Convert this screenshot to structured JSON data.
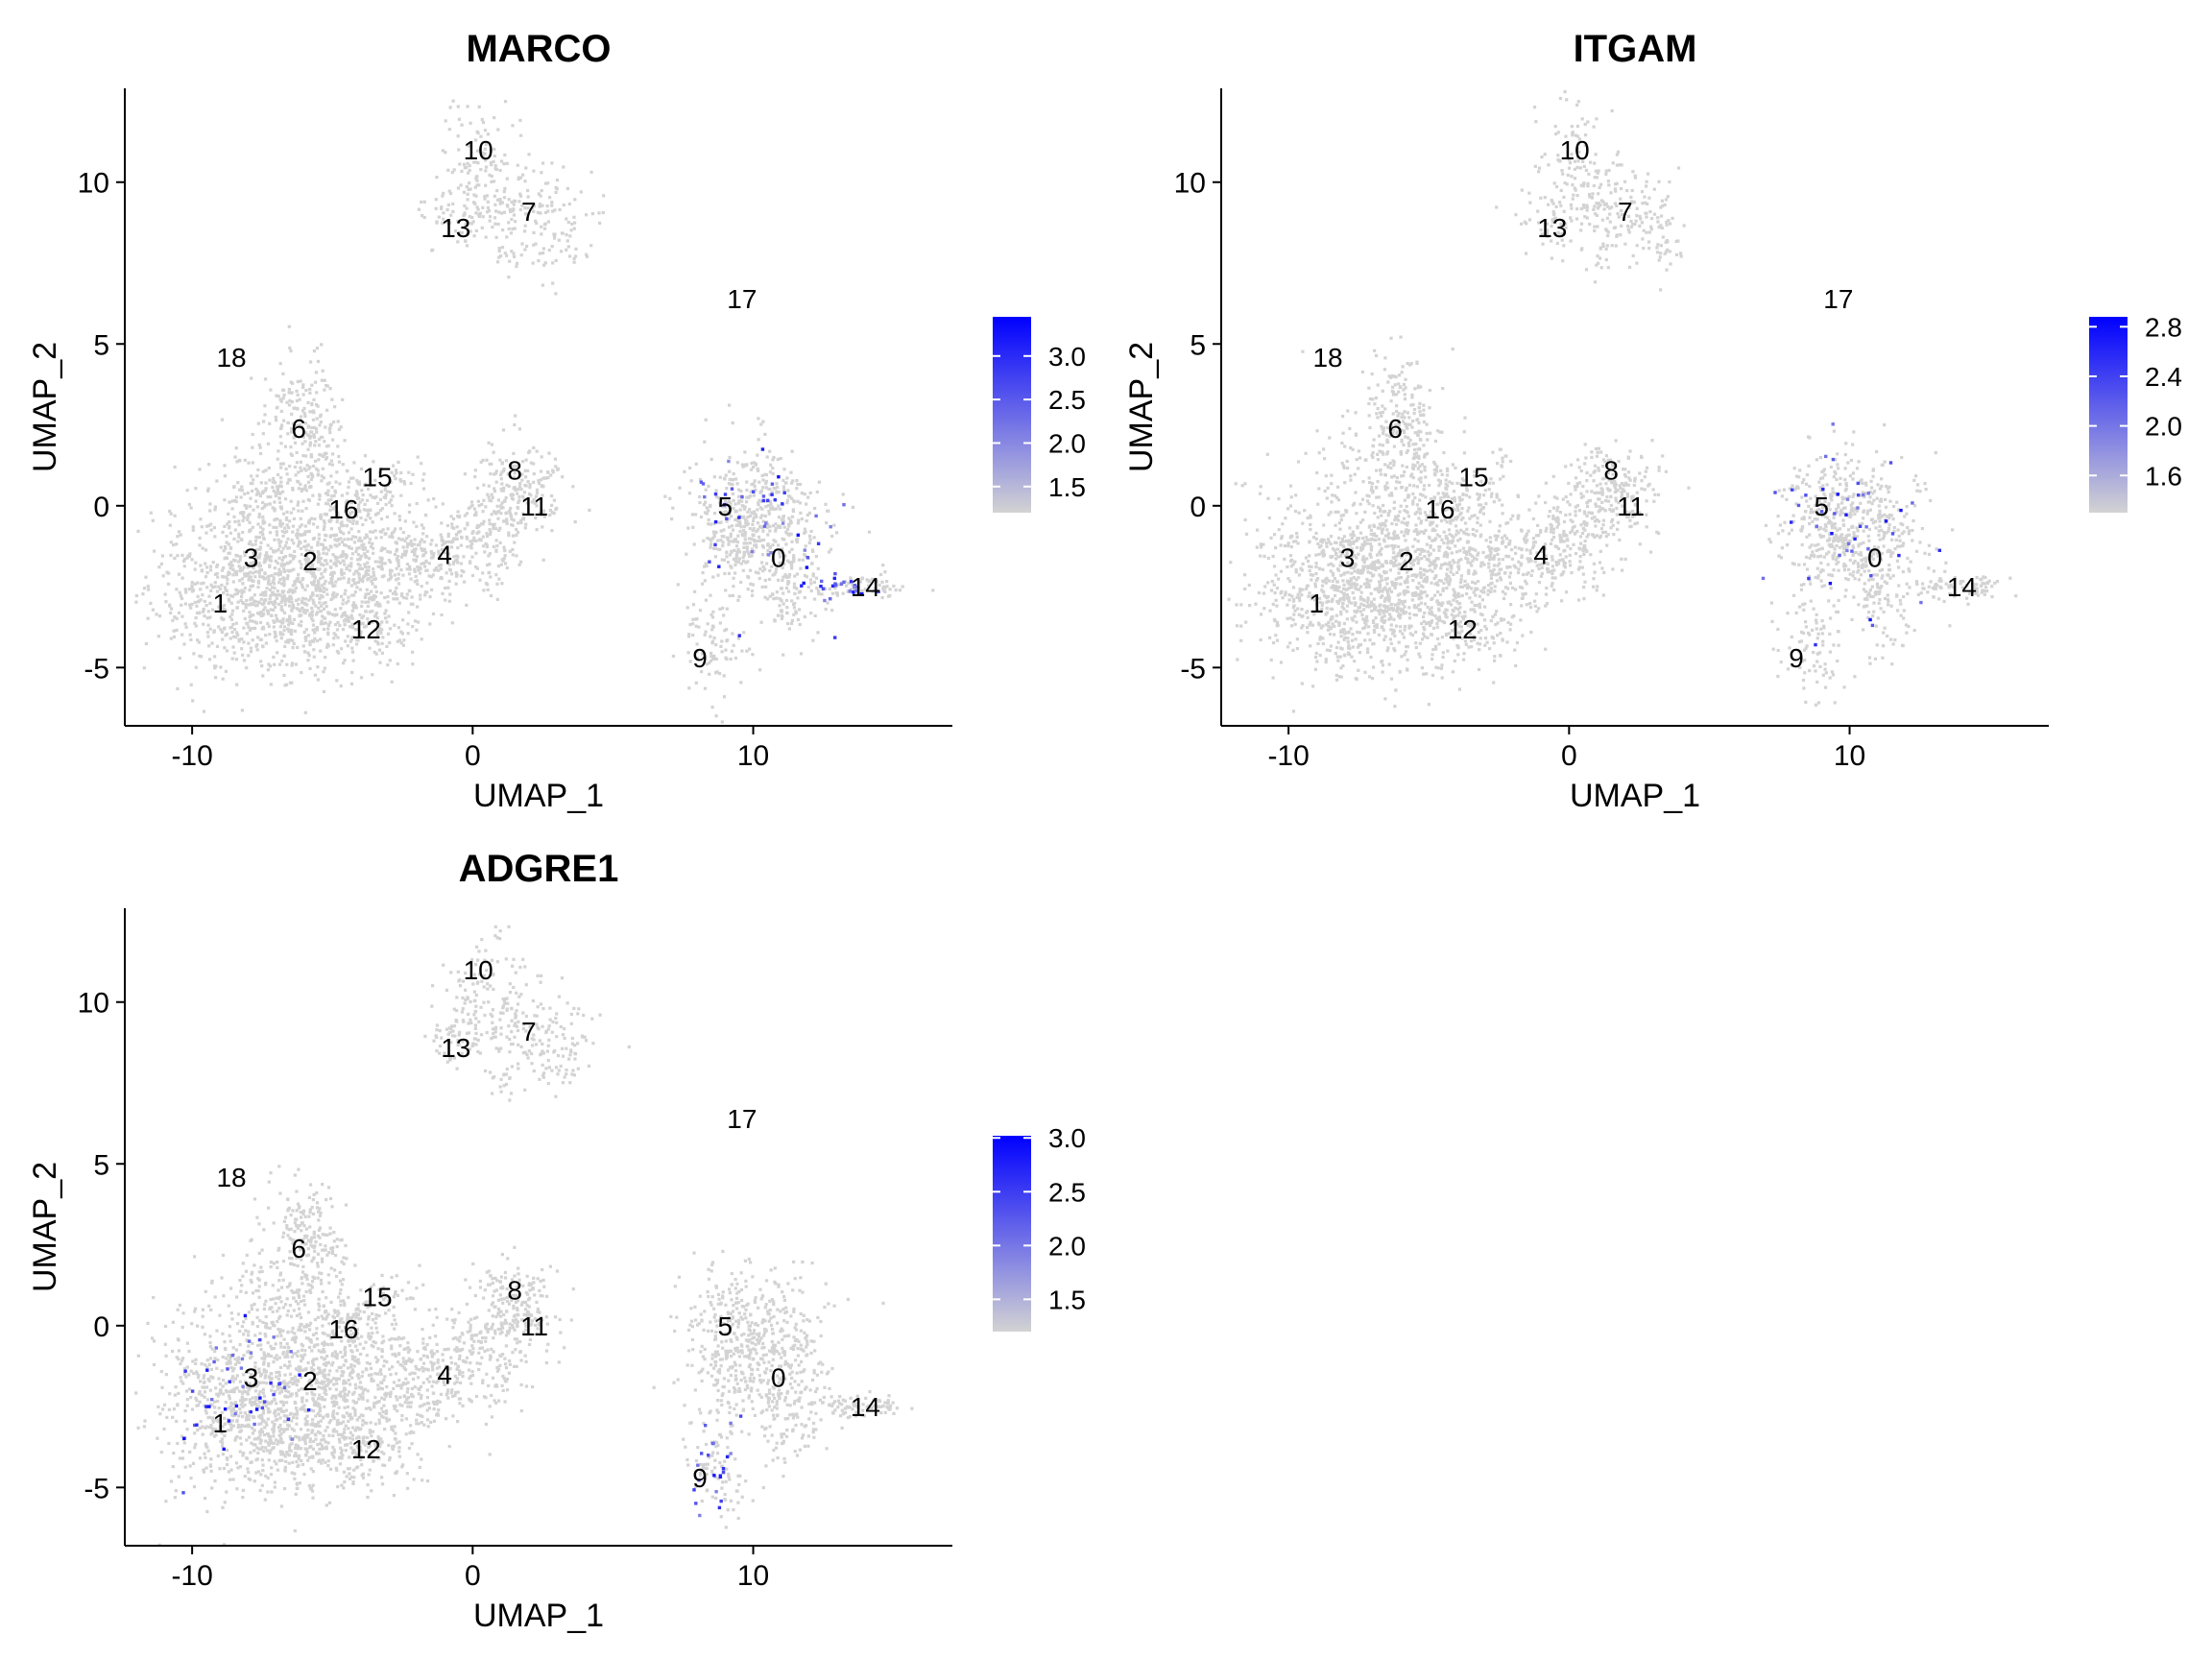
{
  "colors": {
    "low": "#d3d3d3",
    "high": "#0000ff",
    "axis": "#000000",
    "label": "#000000"
  },
  "chart_data": [
    {
      "type": "scatter",
      "title": "MARCO",
      "xlabel": "UMAP_1",
      "ylabel": "UMAP_2",
      "xlim": [
        -12.4,
        17.1
      ],
      "ylim": [
        -6.8,
        12.9
      ],
      "xticks": [
        -10,
        0,
        10
      ],
      "yticks": [
        -5,
        0,
        5,
        10
      ],
      "grid": false,
      "legend_placement": "right",
      "color_scale": {
        "min": 1.2,
        "max": 3.45,
        "ticks": [
          1.5,
          2.0,
          2.5,
          3.0
        ],
        "tick_labels": [
          "1.5",
          "2.0",
          "2.5",
          "3.0"
        ]
      },
      "cluster_labels": [
        {
          "label": "0",
          "x": 10.9,
          "y": -1.6
        },
        {
          "label": "1",
          "x": -9.0,
          "y": -3.0
        },
        {
          "label": "2",
          "x": -5.8,
          "y": -1.7
        },
        {
          "label": "3",
          "x": -7.9,
          "y": -1.6
        },
        {
          "label": "4",
          "x": -1.0,
          "y": -1.5
        },
        {
          "label": "5",
          "x": 9.0,
          "y": 0.0
        },
        {
          "label": "6",
          "x": -6.2,
          "y": 2.4
        },
        {
          "label": "7",
          "x": 2.0,
          "y": 9.1
        },
        {
          "label": "8",
          "x": 1.5,
          "y": 1.1
        },
        {
          "label": "9",
          "x": 8.1,
          "y": -4.7
        },
        {
          "label": "10",
          "x": 0.2,
          "y": 11.0
        },
        {
          "label": "11",
          "x": 2.2,
          "y": 0.0
        },
        {
          "label": "12",
          "x": -3.8,
          "y": -3.8
        },
        {
          "label": "13",
          "x": -0.6,
          "y": 8.6
        },
        {
          "label": "14",
          "x": 14.0,
          "y": -2.5
        },
        {
          "label": "15",
          "x": -3.4,
          "y": 0.9
        },
        {
          "label": "16",
          "x": -4.6,
          "y": -0.1
        },
        {
          "label": "17",
          "x": 9.6,
          "y": 6.4
        },
        {
          "label": "18",
          "x": -8.6,
          "y": 4.6
        }
      ],
      "expression_hotspots": [
        "0",
        "5",
        "14"
      ]
    },
    {
      "type": "scatter",
      "title": "ITGAM",
      "xlabel": "UMAP_1",
      "ylabel": "UMAP_2",
      "xlim": [
        -12.4,
        17.1
      ],
      "ylim": [
        -6.8,
        12.9
      ],
      "xticks": [
        -10,
        0,
        10
      ],
      "yticks": [
        -5,
        0,
        5,
        10
      ],
      "grid": false,
      "legend_placement": "right",
      "color_scale": {
        "min": 1.3,
        "max": 2.88,
        "ticks": [
          1.6,
          2.0,
          2.4,
          2.8
        ],
        "tick_labels": [
          "1.6",
          "2.0",
          "2.4",
          "2.8"
        ]
      },
      "cluster_labels": [
        {
          "label": "0",
          "x": 10.9,
          "y": -1.6
        },
        {
          "label": "1",
          "x": -9.0,
          "y": -3.0
        },
        {
          "label": "2",
          "x": -5.8,
          "y": -1.7
        },
        {
          "label": "3",
          "x": -7.9,
          "y": -1.6
        },
        {
          "label": "4",
          "x": -1.0,
          "y": -1.5
        },
        {
          "label": "5",
          "x": 9.0,
          "y": 0.0
        },
        {
          "label": "6",
          "x": -6.2,
          "y": 2.4
        },
        {
          "label": "7",
          "x": 2.0,
          "y": 9.1
        },
        {
          "label": "8",
          "x": 1.5,
          "y": 1.1
        },
        {
          "label": "9",
          "x": 8.1,
          "y": -4.7
        },
        {
          "label": "10",
          "x": 0.2,
          "y": 11.0
        },
        {
          "label": "11",
          "x": 2.2,
          "y": 0.0
        },
        {
          "label": "12",
          "x": -3.8,
          "y": -3.8
        },
        {
          "label": "13",
          "x": -0.6,
          "y": 8.6
        },
        {
          "label": "14",
          "x": 14.0,
          "y": -2.5
        },
        {
          "label": "15",
          "x": -3.4,
          "y": 0.9
        },
        {
          "label": "16",
          "x": -4.6,
          "y": -0.1
        },
        {
          "label": "17",
          "x": 9.6,
          "y": 6.4
        },
        {
          "label": "18",
          "x": -8.6,
          "y": 4.6
        }
      ],
      "expression_hotspots": [
        "0",
        "5"
      ]
    },
    {
      "type": "scatter",
      "title": "ADGRE1",
      "xlabel": "UMAP_1",
      "ylabel": "UMAP_2",
      "xlim": [
        -12.4,
        17.1
      ],
      "ylim": [
        -6.8,
        12.9
      ],
      "xticks": [
        -10,
        0,
        10
      ],
      "yticks": [
        -5,
        0,
        5,
        10
      ],
      "grid": false,
      "legend_placement": "right",
      "color_scale": {
        "min": 1.2,
        "max": 3.02,
        "ticks": [
          1.5,
          2.0,
          2.5,
          3.0
        ],
        "tick_labels": [
          "1.5",
          "2.0",
          "2.5",
          "3.0"
        ]
      },
      "cluster_labels": [
        {
          "label": "0",
          "x": 10.9,
          "y": -1.6
        },
        {
          "label": "1",
          "x": -9.0,
          "y": -3.0
        },
        {
          "label": "2",
          "x": -5.8,
          "y": -1.7
        },
        {
          "label": "3",
          "x": -7.9,
          "y": -1.6
        },
        {
          "label": "4",
          "x": -1.0,
          "y": -1.5
        },
        {
          "label": "5",
          "x": 9.0,
          "y": 0.0
        },
        {
          "label": "6",
          "x": -6.2,
          "y": 2.4
        },
        {
          "label": "7",
          "x": 2.0,
          "y": 9.1
        },
        {
          "label": "8",
          "x": 1.5,
          "y": 1.1
        },
        {
          "label": "9",
          "x": 8.1,
          "y": -4.7
        },
        {
          "label": "10",
          "x": 0.2,
          "y": 11.0
        },
        {
          "label": "11",
          "x": 2.2,
          "y": 0.0
        },
        {
          "label": "12",
          "x": -3.8,
          "y": -3.8
        },
        {
          "label": "13",
          "x": -0.6,
          "y": 8.6
        },
        {
          "label": "14",
          "x": 14.0,
          "y": -2.5
        },
        {
          "label": "15",
          "x": -3.4,
          "y": 0.9
        },
        {
          "label": "16",
          "x": -4.6,
          "y": -0.1
        },
        {
          "label": "17",
          "x": 9.6,
          "y": 6.4
        },
        {
          "label": "18",
          "x": -8.6,
          "y": 4.6
        }
      ],
      "expression_hotspots": [
        "1",
        "3",
        "9"
      ]
    }
  ]
}
